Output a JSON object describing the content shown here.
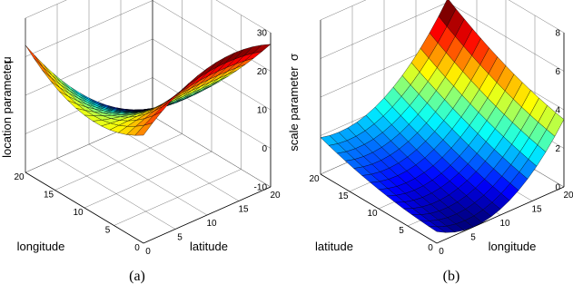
{
  "chart_data": [
    {
      "type": "surface",
      "panel_label": "(a)",
      "xlabel": "longitude",
      "ylabel": "latitude",
      "zlabel": "location parameter",
      "zsymbol": "μ",
      "xlim": [
        0,
        20
      ],
      "ylim": [
        0,
        20
      ],
      "zlim": [
        -10,
        30
      ],
      "xticks": [
        "0",
        "5",
        "10",
        "15",
        "20"
      ],
      "yticks": [
        "0",
        "5",
        "10",
        "15",
        "20"
      ],
      "zticks": [
        "-10",
        "0",
        "10",
        "20",
        "30"
      ],
      "grid": true,
      "colormap": "jet",
      "corner_values": {
        "x0_y0": 18,
        "x20_y0": 23,
        "x0_y20": 27,
        "x20_y20": -8
      },
      "mid_edge_values": {
        "x10_y0": 14,
        "x0_y10": 28,
        "x20_y10": 2,
        "x10_y20": 7
      },
      "center_value": 8
    },
    {
      "type": "surface",
      "panel_label": "(b)",
      "xlabel": "longitude",
      "ylabel": "latitude",
      "zlabel": "scale parameter",
      "zsymbol": "σ",
      "xlim": [
        0,
        20
      ],
      "ylim": [
        0,
        20
      ],
      "zlim": [
        0,
        8
      ],
      "xticks": [
        "0",
        "5",
        "10",
        "15",
        "20"
      ],
      "yticks": [
        "0",
        "5",
        "10",
        "15",
        "20"
      ],
      "zticks": [
        "0",
        "2",
        "4",
        "6",
        "8"
      ],
      "grid": true,
      "colormap": "jet",
      "corner_values": {
        "x0_y0": 0.6,
        "x20_y0": 3.5,
        "x0_y20": 1.9,
        "x20_y20": 6.2
      },
      "mid_edge_values": {
        "x10_y0": 0.3,
        "x0_y10": 1.0,
        "x20_y10": 4.5,
        "x10_y20": 2.5
      },
      "center_value": 1.2
    }
  ]
}
